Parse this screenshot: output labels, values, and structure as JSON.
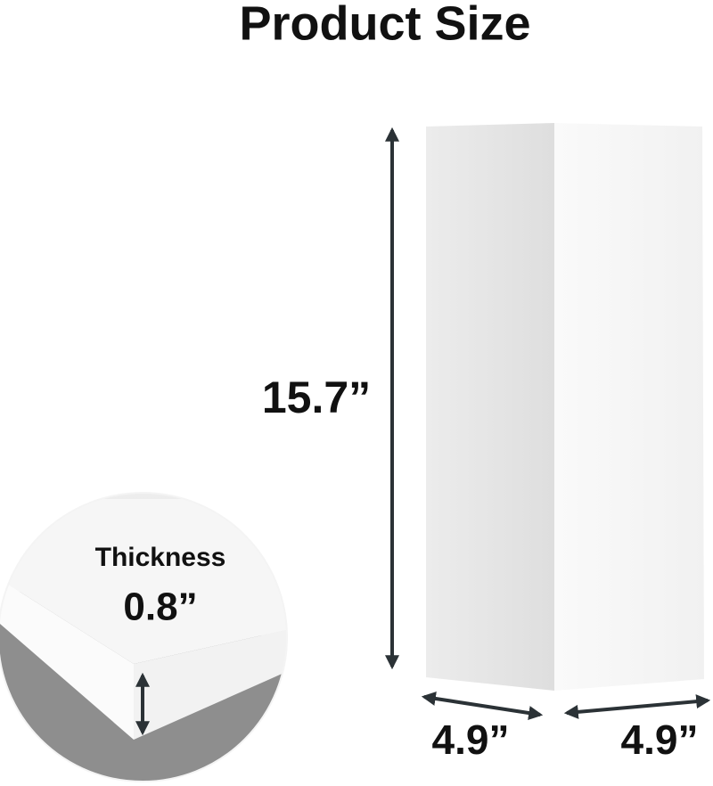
{
  "title": "Product Size",
  "dimensions": {
    "height": "15.7”",
    "width_left": "4.9”",
    "width_right": "4.9”"
  },
  "thickness": {
    "label": "Thickness",
    "value": "0.8”"
  }
}
